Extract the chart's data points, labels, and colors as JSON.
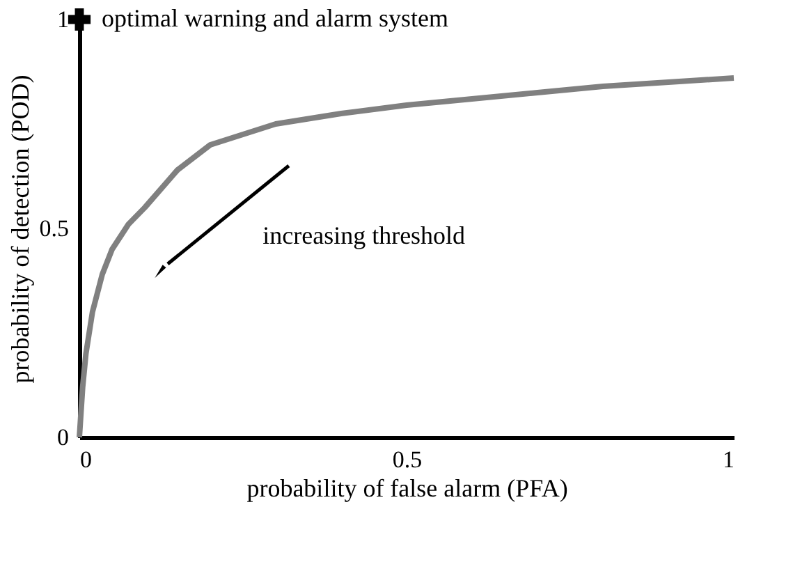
{
  "chart_data": {
    "type": "line",
    "xlabel": "probability of false alarm (PFA)",
    "ylabel": "probability of detection (POD)",
    "xlim": [
      0,
      1
    ],
    "ylim": [
      0,
      1
    ],
    "xticks": [
      0,
      0.5,
      1
    ],
    "yticks": [
      0,
      0.5,
      1
    ],
    "grid": false,
    "line_style": "solid",
    "series": [
      {
        "color": "#808080",
        "marker": "none",
        "x": [
          0,
          0.005,
          0.01,
          0.02,
          0.035,
          0.05,
          0.075,
          0.1,
          0.15,
          0.2,
          0.3,
          0.4,
          0.5,
          0.6,
          0.7,
          0.8,
          0.9,
          1
        ],
        "values": [
          0,
          0.12,
          0.2,
          0.3,
          0.39,
          0.45,
          0.51,
          0.55,
          0.64,
          0.7,
          0.75,
          0.775,
          0.795,
          0.81,
          0.825,
          0.84,
          0.85,
          0.86
        ]
      },
      {
        "type": "scatter",
        "color": "#000000",
        "marker": "cross",
        "x": [
          0
        ],
        "values": [
          1
        ]
      }
    ],
    "annotations": [
      {
        "text": "optimal warning and alarm system",
        "x": 0,
        "y": 1
      },
      "increasing threshold"
    ]
  }
}
